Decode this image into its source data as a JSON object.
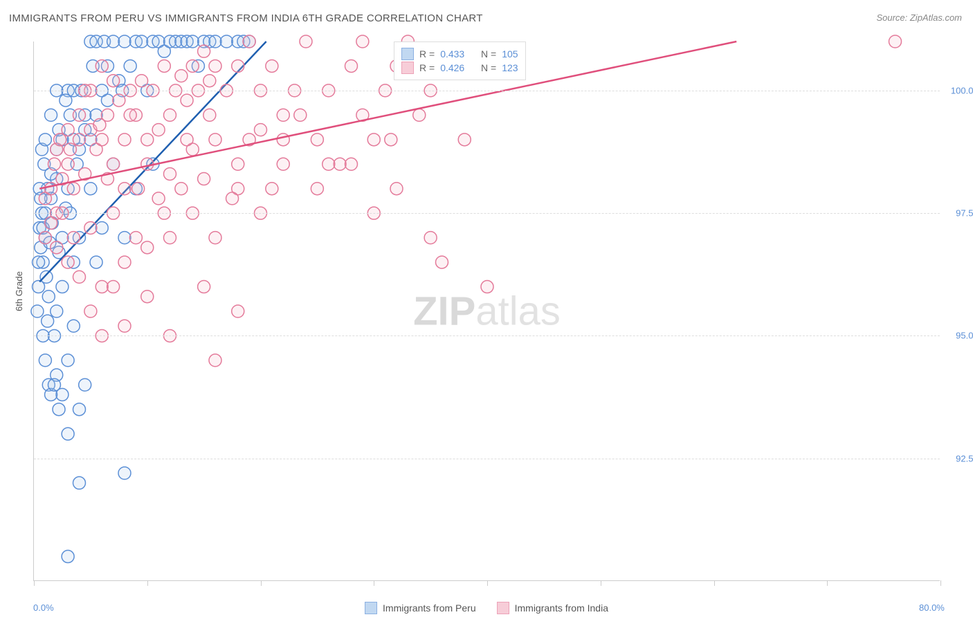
{
  "title": "IMMIGRANTS FROM PERU VS IMMIGRANTS FROM INDIA 6TH GRADE CORRELATION CHART",
  "source": "Source: ZipAtlas.com",
  "ylabel": "6th Grade",
  "watermark_zip": "ZIP",
  "watermark_atlas": "atlas",
  "chart": {
    "type": "scatter",
    "xlim": [
      0,
      80
    ],
    "ylim": [
      90,
      101
    ],
    "xtick_positions": [
      0,
      10,
      20,
      30,
      40,
      50,
      60,
      70,
      80
    ],
    "xtick_labels": {
      "0": "0.0%",
      "80": "80.0%"
    },
    "ytick_positions": [
      92.5,
      95.0,
      97.5,
      100.0
    ],
    "ytick_labels": [
      "92.5%",
      "95.0%",
      "97.5%",
      "100.0%"
    ],
    "background_color": "#ffffff",
    "grid_color": "#dddddd",
    "axis_color": "#cccccc",
    "tick_label_color": "#5b8fd6",
    "marker_radius": 9,
    "marker_stroke_width": 1.5,
    "marker_fill_opacity": 0.2,
    "trend_line_width": 2.5,
    "series": [
      {
        "name": "peru",
        "label": "Immigrants from Peru",
        "fill": "#a8c8ec",
        "stroke": "#5b8fd6",
        "line_color": "#1f5fb0",
        "R": "0.433",
        "N": "105",
        "trend": {
          "x1": 0.5,
          "y1": 96.1,
          "x2": 20.5,
          "y2": 101.0
        },
        "points": [
          [
            0.5,
            97.2
          ],
          [
            0.6,
            96.8
          ],
          [
            0.7,
            97.5
          ],
          [
            0.8,
            96.5
          ],
          [
            1.0,
            97.0
          ],
          [
            1.2,
            98.0
          ],
          [
            1.1,
            96.2
          ],
          [
            1.3,
            95.8
          ],
          [
            1.5,
            97.8
          ],
          [
            0.4,
            96.0
          ],
          [
            0.9,
            98.5
          ],
          [
            1.4,
            96.9
          ],
          [
            1.6,
            97.3
          ],
          [
            0.3,
            95.5
          ],
          [
            2.0,
            98.2
          ],
          [
            2.2,
            96.7
          ],
          [
            2.5,
            99.0
          ],
          [
            1.8,
            95.0
          ],
          [
            1.0,
            94.5
          ],
          [
            1.3,
            94.0
          ],
          [
            2.8,
            97.6
          ],
          [
            3.0,
            100.0
          ],
          [
            3.2,
            99.5
          ],
          [
            3.5,
            100.0
          ],
          [
            4.0,
            98.8
          ],
          [
            4.2,
            100.0
          ],
          [
            4.5,
            99.2
          ],
          [
            5.0,
            101.0
          ],
          [
            5.2,
            100.5
          ],
          [
            5.5,
            101.0
          ],
          [
            6.0,
            100.0
          ],
          [
            6.2,
            101.0
          ],
          [
            6.5,
            99.8
          ],
          [
            7.0,
            101.0
          ],
          [
            7.5,
            100.2
          ],
          [
            8.0,
            101.0
          ],
          [
            8.5,
            100.5
          ],
          [
            9.0,
            101.0
          ],
          [
            9.5,
            101.0
          ],
          [
            10.0,
            100.0
          ],
          [
            10.5,
            101.0
          ],
          [
            11.0,
            101.0
          ],
          [
            11.5,
            100.8
          ],
          [
            12.0,
            101.0
          ],
          [
            12.5,
            101.0
          ],
          [
            13.0,
            101.0
          ],
          [
            13.5,
            101.0
          ],
          [
            14.0,
            101.0
          ],
          [
            14.5,
            100.5
          ],
          [
            15.0,
            101.0
          ],
          [
            15.5,
            101.0
          ],
          [
            16.0,
            101.0
          ],
          [
            17.0,
            101.0
          ],
          [
            18.0,
            101.0
          ],
          [
            18.5,
            101.0
          ],
          [
            19.0,
            101.0
          ],
          [
            2.0,
            94.2
          ],
          [
            2.5,
            93.8
          ],
          [
            3.0,
            94.5
          ],
          [
            3.5,
            95.2
          ],
          [
            4.0,
            93.5
          ],
          [
            1.5,
            93.8
          ],
          [
            1.8,
            94.0
          ],
          [
            2.2,
            93.5
          ],
          [
            3.0,
            93.0
          ],
          [
            4.5,
            94.0
          ],
          [
            5.0,
            98.0
          ],
          [
            5.5,
            96.5
          ],
          [
            6.0,
            97.2
          ],
          [
            7.0,
            98.5
          ],
          [
            8.0,
            97.0
          ],
          [
            9.0,
            98.0
          ],
          [
            10.5,
            98.5
          ],
          [
            2.0,
            95.5
          ],
          [
            2.5,
            96.0
          ],
          [
            3.5,
            96.5
          ],
          [
            4.0,
            97.0
          ],
          [
            0.8,
            95.0
          ],
          [
            1.2,
            95.3
          ],
          [
            3.0,
            98.0
          ],
          [
            3.8,
            98.5
          ],
          [
            4.5,
            99.5
          ],
          [
            5.0,
            99.0
          ],
          [
            5.5,
            99.5
          ],
          [
            0.5,
            98.0
          ],
          [
            0.7,
            98.8
          ],
          [
            1.0,
            99.0
          ],
          [
            1.5,
            99.5
          ],
          [
            2.0,
            100.0
          ],
          [
            2.2,
            99.2
          ],
          [
            2.8,
            99.8
          ],
          [
            6.5,
            100.5
          ],
          [
            7.8,
            100.0
          ],
          [
            3.0,
            90.5
          ],
          [
            4.0,
            92.0
          ],
          [
            8.0,
            92.2
          ],
          [
            2.5,
            97.0
          ],
          [
            3.2,
            97.5
          ],
          [
            1.0,
            97.5
          ],
          [
            1.5,
            98.3
          ],
          [
            0.6,
            97.8
          ],
          [
            2.0,
            98.8
          ],
          [
            0.4,
            96.5
          ],
          [
            0.8,
            97.2
          ],
          [
            3.5,
            99.0
          ]
        ]
      },
      {
        "name": "india",
        "label": "Immigrants from India",
        "fill": "#f5b8c8",
        "stroke": "#e47a9a",
        "line_color": "#e04f7c",
        "R": "0.426",
        "N": "123",
        "trend": {
          "x1": 0.5,
          "y1": 98.0,
          "x2": 62.0,
          "y2": 101.0
        },
        "points": [
          [
            1.0,
            97.8
          ],
          [
            1.5,
            98.0
          ],
          [
            2.0,
            97.5
          ],
          [
            2.5,
            98.2
          ],
          [
            3.0,
            98.5
          ],
          [
            3.5,
            98.0
          ],
          [
            4.0,
            99.0
          ],
          [
            4.5,
            98.3
          ],
          [
            5.0,
            99.2
          ],
          [
            5.5,
            98.8
          ],
          [
            6.0,
            99.0
          ],
          [
            6.5,
            99.5
          ],
          [
            7.0,
            98.5
          ],
          [
            7.5,
            99.8
          ],
          [
            8.0,
            99.0
          ],
          [
            8.5,
            100.0
          ],
          [
            9.0,
            99.5
          ],
          [
            9.5,
            100.2
          ],
          [
            10.0,
            99.0
          ],
          [
            10.5,
            100.0
          ],
          [
            11.0,
            99.2
          ],
          [
            11.5,
            100.5
          ],
          [
            12.0,
            99.5
          ],
          [
            12.5,
            100.0
          ],
          [
            13.0,
            100.3
          ],
          [
            13.5,
            99.8
          ],
          [
            14.0,
            100.5
          ],
          [
            14.5,
            100.0
          ],
          [
            15.0,
            100.8
          ],
          [
            15.5,
            100.2
          ],
          [
            16.0,
            100.5
          ],
          [
            17.0,
            100.0
          ],
          [
            18.0,
            100.5
          ],
          [
            19.0,
            101.0
          ],
          [
            20.0,
            100.0
          ],
          [
            21.0,
            100.5
          ],
          [
            22.0,
            99.5
          ],
          [
            23.0,
            100.0
          ],
          [
            24.0,
            101.0
          ],
          [
            25.0,
            99.0
          ],
          [
            26.0,
            100.0
          ],
          [
            27.0,
            98.5
          ],
          [
            28.0,
            100.5
          ],
          [
            29.0,
            101.0
          ],
          [
            30.0,
            99.0
          ],
          [
            31.0,
            100.0
          ],
          [
            32.0,
            100.5
          ],
          [
            33.0,
            101.0
          ],
          [
            34.0,
            99.5
          ],
          [
            35.0,
            100.0
          ],
          [
            1.0,
            97.0
          ],
          [
            1.5,
            97.3
          ],
          [
            2.0,
            96.8
          ],
          [
            2.5,
            97.5
          ],
          [
            3.0,
            96.5
          ],
          [
            3.5,
            97.0
          ],
          [
            4.0,
            96.2
          ],
          [
            5.0,
            97.2
          ],
          [
            6.0,
            96.0
          ],
          [
            7.0,
            97.5
          ],
          [
            8.0,
            96.5
          ],
          [
            9.0,
            97.0
          ],
          [
            10.0,
            96.8
          ],
          [
            11.0,
            97.8
          ],
          [
            12.0,
            97.0
          ],
          [
            13.0,
            98.0
          ],
          [
            14.0,
            97.5
          ],
          [
            15.0,
            98.2
          ],
          [
            16.0,
            97.0
          ],
          [
            18.0,
            98.0
          ],
          [
            20.0,
            97.5
          ],
          [
            22.0,
            98.5
          ],
          [
            25.0,
            98.0
          ],
          [
            28.0,
            98.5
          ],
          [
            30.0,
            97.5
          ],
          [
            32.0,
            98.0
          ],
          [
            35.0,
            97.0
          ],
          [
            5.0,
            95.5
          ],
          [
            6.0,
            95.0
          ],
          [
            7.0,
            96.0
          ],
          [
            8.0,
            95.2
          ],
          [
            10.0,
            95.8
          ],
          [
            12.0,
            95.0
          ],
          [
            15.0,
            96.0
          ],
          [
            18.0,
            95.5
          ],
          [
            8.0,
            98.0
          ],
          [
            10.0,
            98.5
          ],
          [
            12.0,
            98.3
          ],
          [
            14.0,
            98.8
          ],
          [
            16.0,
            99.0
          ],
          [
            18.0,
            98.5
          ],
          [
            20.0,
            99.2
          ],
          [
            22.0,
            99.0
          ],
          [
            16.0,
            94.5
          ],
          [
            2.0,
            98.8
          ],
          [
            3.0,
            99.2
          ],
          [
            4.0,
            99.5
          ],
          [
            5.0,
            100.0
          ],
          [
            6.0,
            100.5
          ],
          [
            7.0,
            100.2
          ],
          [
            36.0,
            96.5
          ],
          [
            76.0,
            101.0
          ],
          [
            38.0,
            99.0
          ],
          [
            40.0,
            96.0
          ],
          [
            1.8,
            98.5
          ],
          [
            2.3,
            99.0
          ],
          [
            3.2,
            98.8
          ],
          [
            4.5,
            100.0
          ],
          [
            5.8,
            99.3
          ],
          [
            6.5,
            98.2
          ],
          [
            8.5,
            99.5
          ],
          [
            9.2,
            98.0
          ],
          [
            11.5,
            97.5
          ],
          [
            13.5,
            99.0
          ],
          [
            15.5,
            99.5
          ],
          [
            17.5,
            97.8
          ],
          [
            19.0,
            99.0
          ],
          [
            21.0,
            98.0
          ],
          [
            23.5,
            99.5
          ],
          [
            26.0,
            98.5
          ],
          [
            29.0,
            99.5
          ],
          [
            31.5,
            99.0
          ],
          [
            34.0,
            100.5
          ]
        ]
      }
    ]
  },
  "legend_top": {
    "r_label": "R =",
    "n_label": "N ="
  }
}
